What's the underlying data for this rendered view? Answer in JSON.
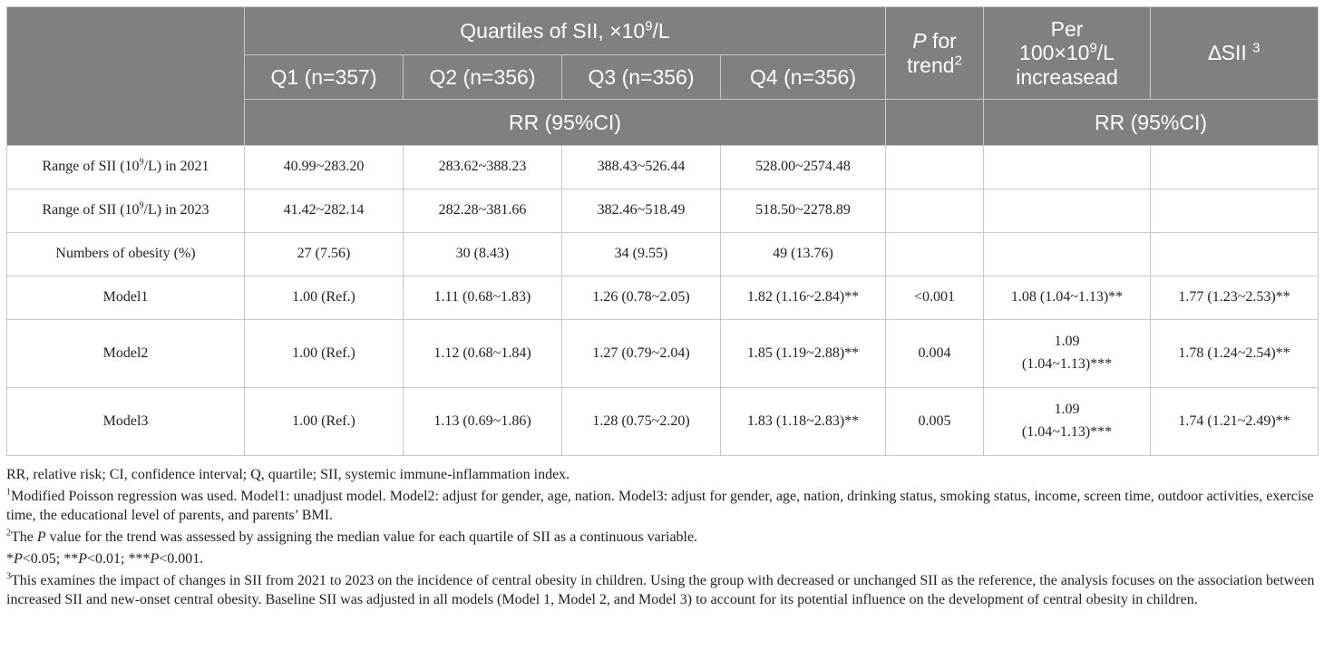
{
  "header": {
    "quartiles_title_pre": "Quartiles of SII, ×10",
    "quartiles_title_sup": "9",
    "quartiles_title_post": "/L",
    "q_labels": [
      "Q1 (n=357)",
      "Q2 (n=356)",
      "Q3 (n=356)",
      "Q4 (n=356)"
    ],
    "p_trend_italic": "P",
    "p_trend_rest": " for trend",
    "p_trend_sup": "2",
    "per100_line1": "Per",
    "per100_line2_pre": "100×10",
    "per100_line2_sup": "9",
    "per100_line2_post": "/L",
    "per100_line3": "increasead",
    "delta_label": "∆SII ",
    "delta_sup": "3",
    "rr_label_left": "RR (95%CI)",
    "rr_label_right": "RR (95%CI)"
  },
  "rows": [
    {
      "label_pre": "Range of SII (10",
      "label_sup": "9",
      "label_post": "/L) in 2021",
      "cells": [
        "40.99~283.20",
        "283.62~388.23",
        "388.43~526.44",
        "528.00~2574.48",
        "",
        "",
        ""
      ]
    },
    {
      "label_pre": "Range of SII (10",
      "label_sup": "9",
      "label_post": "/L) in 2023",
      "cells": [
        "41.42~282.14",
        "282.28~381.66",
        "382.46~518.49",
        "518.50~2278.89",
        "",
        "",
        ""
      ]
    },
    {
      "label": "Numbers of obesity (%)",
      "cells": [
        "27 (7.56)",
        "30 (8.43)",
        "34 (9.55)",
        "49 (13.76)",
        "",
        "",
        ""
      ]
    },
    {
      "label": "Model1",
      "cells": [
        "1.00 (Ref.)",
        "1.11 (0.68~1.83)",
        "1.26 (0.78~2.05)",
        "1.82 (1.16~2.84)**",
        "<0.001",
        "1.08 (1.04~1.13)**",
        "1.77 (1.23~2.53)**"
      ]
    },
    {
      "label": "Model2",
      "cells": [
        "1.00 (Ref.)",
        "1.12 (0.68~1.84)",
        "1.27 (0.79~2.04)",
        "1.85 (1.19~2.88)**",
        "0.004"
      ],
      "per100_a": "1.09",
      "per100_b": "(1.04~1.13)***",
      "delta": "1.78 (1.24~2.54)**"
    },
    {
      "label": "Model3",
      "cells": [
        "1.00 (Ref.)",
        "1.13 (0.69~1.86)",
        "1.28 (0.75~2.20)",
        "1.83 (1.18~2.83)**",
        "0.005"
      ],
      "per100_a": "1.09",
      "per100_b": "(1.04~1.13)***",
      "delta": "1.74 (1.21~2.49)**"
    }
  ],
  "notes": {
    "abbrev": "RR, relative risk; CI, confidence interval; Q, quartile; SII, systemic immune-inflammation index.",
    "n1_sup": "1",
    "n1_text": "Modified Poisson regression was used. Model1: unadjust model. Model2: adjust for gender, age, nation. Model3: adjust for gender, age, nation, drinking status, smoking status, income, screen time, outdoor activities, exercise time, the educational level of parents, and parents’ BMI.",
    "n2_sup": "2",
    "n2_pre": "The ",
    "n2_italic": "P",
    "n2_post": " value for the trend was assessed by assigning the median value for each quartile of SII as a continuous variable.",
    "sig_star1": "*",
    "sig_p1": "P",
    "sig_t1": "<0.05; **",
    "sig_p2": "P",
    "sig_t2": "<0.01; ***",
    "sig_p3": "P",
    "sig_t3": "<0.001.",
    "n3_sup": "3",
    "n3_text": "This examines the impact of changes in SII from 2021 to 2023 on the incidence of central obesity in children. Using the group with decreased or unchanged SII as the reference, the analysis focuses on the association between increased SII and new-onset central obesity. Baseline SII was adjusted in all models (Model 1, Model 2, and Model 3) to account for its potential influence on the development of central obesity in children."
  }
}
